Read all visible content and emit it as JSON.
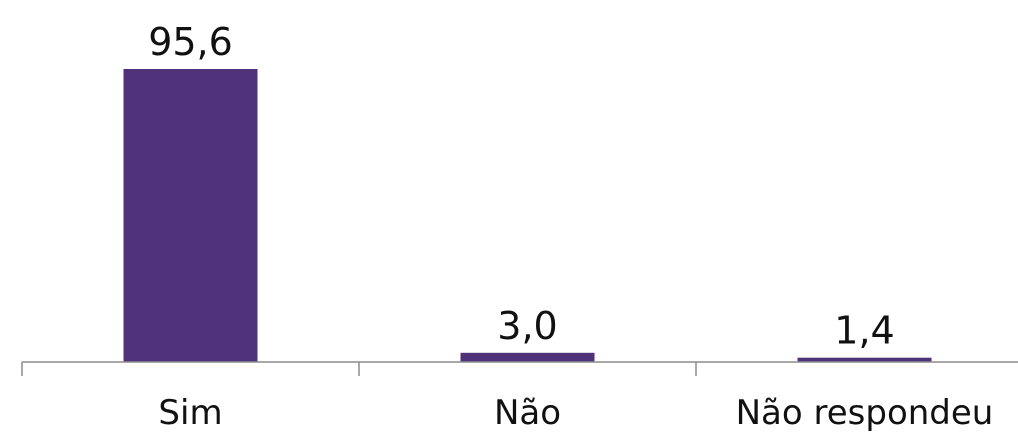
{
  "chart_data": {
    "type": "bar",
    "categories": [
      "Sim",
      "Não",
      "Não respondeu"
    ],
    "values": [
      95.6,
      3.0,
      1.4
    ],
    "value_labels": [
      "95,6",
      "3,0",
      "1,4"
    ],
    "title": "",
    "xlabel": "",
    "ylabel": "",
    "ylim": [
      0,
      100
    ],
    "grid": false,
    "legend": "none",
    "bar_color": "#4f3279",
    "axis_color": "#8c8c8c"
  }
}
